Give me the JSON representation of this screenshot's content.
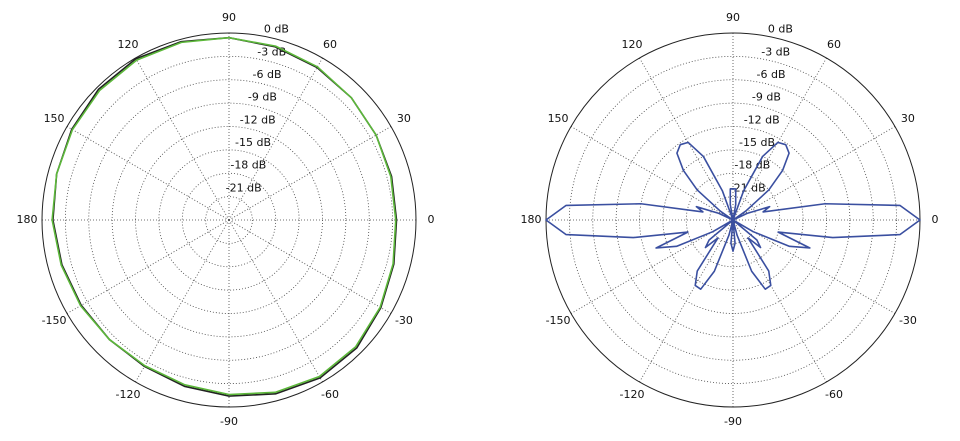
{
  "chart_data": [
    {
      "type": "polar",
      "theta": [
        0,
        15,
        30,
        45,
        60,
        75,
        90,
        105,
        120,
        135,
        150,
        165,
        180,
        195,
        210,
        225,
        240,
        255,
        270,
        285,
        300,
        315,
        330,
        345
      ],
      "series": [
        {
          "color": "#222222",
          "values": [
            -2.5,
            -2.4,
            -2.2,
            -1.8,
            -1.4,
            -1.0,
            -0.6,
            -0.3,
            -0.1,
            -0.3,
            -0.7,
            -1.1,
            -1.4,
            -1.8,
            -2.1,
            -2.3,
            -2.3,
            -1.9,
            -1.4,
            -0.9,
            -0.6,
            -0.8,
            -1.5,
            -2.1
          ]
        },
        {
          "color": "#5cb83a",
          "values": [
            -2.6,
            -2.5,
            -2.2,
            -1.8,
            -1.3,
            -0.9,
            -0.6,
            -0.4,
            -0.3,
            -0.5,
            -0.8,
            -1.1,
            -1.3,
            -1.7,
            -2.0,
            -2.3,
            -2.4,
            -2.1,
            -1.6,
            -1.1,
            -0.8,
            -1.0,
            -1.6,
            -2.2
          ]
        }
      ],
      "rlim": [
        -24,
        0
      ],
      "rticks": [
        {
          "value": 0,
          "label": "0 dB"
        },
        {
          "value": -3,
          "label": "-3 dB"
        },
        {
          "value": -6,
          "label": "-6 dB"
        },
        {
          "value": -9,
          "label": "-9 dB"
        },
        {
          "value": -12,
          "label": "-12 dB"
        },
        {
          "value": -15,
          "label": "-15 dB"
        },
        {
          "value": -18,
          "label": "-18 dB"
        },
        {
          "value": -21,
          "label": "-21 dB"
        }
      ],
      "thetaticks": [
        0,
        30,
        60,
        90,
        120,
        150,
        180,
        -150,
        -120,
        -90,
        -60,
        -30
      ],
      "grid": true
    },
    {
      "type": "polar",
      "theta": [
        0,
        5,
        10,
        15,
        20,
        25,
        30,
        35,
        40,
        45,
        50,
        55,
        60,
        65,
        70,
        75,
        80,
        85,
        90,
        95,
        100,
        105,
        110,
        115,
        120,
        125,
        130,
        135,
        140,
        145,
        150,
        155,
        160,
        165,
        170,
        175,
        180,
        185,
        190,
        195,
        200,
        205,
        210,
        215,
        220,
        225,
        230,
        235,
        240,
        245,
        250,
        255,
        260,
        265,
        270,
        275,
        280,
        285,
        290,
        295,
        300,
        305,
        310,
        315,
        320,
        325,
        330,
        335,
        340,
        345,
        350,
        355
      ],
      "series": [
        {
          "color": "#3a4fa0",
          "values": [
            0,
            -2.5,
            -12,
            -20,
            -19,
            -22,
            -24,
            -22,
            -18,
            -15,
            -12.8,
            -12.2,
            -12.5,
            -15,
            -20,
            -24,
            -22,
            -20,
            -20,
            -20,
            -22,
            -24,
            -20,
            -15,
            -12.5,
            -12.2,
            -12.8,
            -15,
            -18,
            -22,
            -24,
            -22,
            -19,
            -20,
            -12,
            -2.5,
            0,
            -2.5,
            -11,
            -18,
            -13.5,
            -16,
            -21,
            -24,
            -20,
            -19,
            -21,
            -16,
            -14.3,
            -14.2,
            -17,
            -22,
            -24,
            -21,
            -20,
            -21,
            -24,
            -22,
            -17,
            -14.2,
            -14.3,
            -16,
            -21,
            -19,
            -20,
            -24,
            -21,
            -16,
            -13.5,
            -18,
            -11,
            -2.5
          ]
        }
      ],
      "rlim": [
        -24,
        0
      ],
      "rticks": [
        {
          "value": 0,
          "label": "0 dB"
        },
        {
          "value": -3,
          "label": "-3 dB"
        },
        {
          "value": -6,
          "label": "-6 dB"
        },
        {
          "value": -9,
          "label": "-9 dB"
        },
        {
          "value": -12,
          "label": "-12 dB"
        },
        {
          "value": -15,
          "label": "-15 dB"
        },
        {
          "value": -18,
          "label": "-18 dB"
        },
        {
          "value": -21,
          "label": "-21 dB"
        }
      ],
      "thetaticks": [
        0,
        30,
        60,
        90,
        120,
        150,
        180,
        -150,
        -120,
        -90,
        -60,
        -30
      ],
      "grid": true
    }
  ]
}
